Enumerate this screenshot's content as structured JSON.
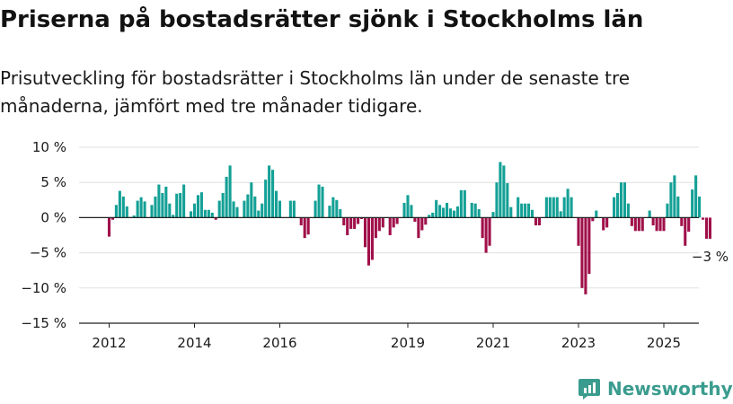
{
  "title": "Priserna på bostadsrätter sjönk i Stockholms län",
  "subtitle": "Prisutveckling för bostadsrätter i Stockholms län under de senaste tre månaderna, jämfört med tre månader tidigare.",
  "brand": {
    "name": "Newsworthy",
    "icon": "newsworthy-logo-icon"
  },
  "colors": {
    "positive": "#14a096",
    "negative": "#a0104a",
    "grid": "#e0e0e0",
    "zero": "#222222"
  },
  "chart_data": {
    "type": "bar",
    "title": "Priserna på bostadsrätter sjönk i Stockholms län",
    "ylabel": "",
    "ylim": [
      -15,
      10
    ],
    "yticks": [
      10,
      5,
      0,
      -5,
      -10,
      -15
    ],
    "ytick_labels": [
      "10 %",
      "5 %",
      "0 %",
      "−5 %",
      "−10 %",
      "−15 %"
    ],
    "xticks": [
      2012,
      2014,
      2016,
      2019,
      2021,
      2023,
      2025
    ],
    "grid": true,
    "start": "2012-01",
    "frequency": "monthly",
    "annotation": {
      "text": "−3 %",
      "target": "last"
    },
    "values": [
      -2.7,
      -0.3,
      1.8,
      3.8,
      3.0,
      1.6,
      0.1,
      0.3,
      2.4,
      2.9,
      2.3,
      0.0,
      1.8,
      3.0,
      4.7,
      3.5,
      4.4,
      2.0,
      0.4,
      3.4,
      3.5,
      4.7,
      0.0,
      0.9,
      2.0,
      3.2,
      3.6,
      1.1,
      1.1,
      0.7,
      -0.3,
      2.4,
      3.5,
      5.8,
      7.4,
      2.3,
      1.5,
      0.0,
      2.4,
      3.3,
      5.0,
      3.0,
      1.0,
      2.0,
      5.4,
      7.4,
      6.8,
      3.8,
      2.4,
      0.0,
      0.0,
      2.4,
      2.4,
      0.0,
      -1.1,
      -2.9,
      -2.4,
      0.0,
      2.4,
      4.7,
      4.4,
      0.0,
      1.7,
      2.9,
      2.5,
      1.2,
      -1.1,
      -2.5,
      -1.6,
      -1.6,
      -0.9,
      -0.2,
      -4.2,
      -6.8,
      -6.0,
      -2.9,
      -1.9,
      -1.4,
      0.0,
      -2.5,
      -1.4,
      -0.9,
      0.0,
      2.1,
      3.2,
      1.8,
      -0.6,
      -2.9,
      -1.8,
      -1.0,
      0.4,
      0.7,
      2.5,
      1.8,
      1.4,
      2.1,
      1.3,
      1.0,
      1.6,
      3.9,
      3.9,
      0.0,
      2.1,
      2.0,
      1.2,
      -2.9,
      -5.0,
      -4.0,
      0.8,
      5.0,
      7.9,
      7.4,
      4.9,
      1.5,
      0.0,
      2.9,
      2.0,
      2.0,
      2.0,
      1.1,
      -1.1,
      -1.1,
      0.0,
      2.9,
      2.9,
      2.9,
      2.9,
      0.9,
      2.9,
      4.1,
      2.9,
      0.0,
      -4.0,
      -10.0,
      -10.9,
      -8.0,
      -0.5,
      1.0,
      0.0,
      -1.8,
      -1.4,
      0.0,
      2.9,
      3.5,
      5.0,
      5.0,
      2.0,
      -1.2,
      -1.9,
      -1.9,
      -1.9,
      0.0,
      1.0,
      -1.1,
      -1.9,
      -1.9,
      -1.9,
      2.0,
      5.0,
      6.0,
      3.0,
      -1.2,
      -4.0,
      -2.0,
      4.0,
      6.0,
      3.0,
      -0.3,
      -3.0,
      -3.0
    ]
  }
}
